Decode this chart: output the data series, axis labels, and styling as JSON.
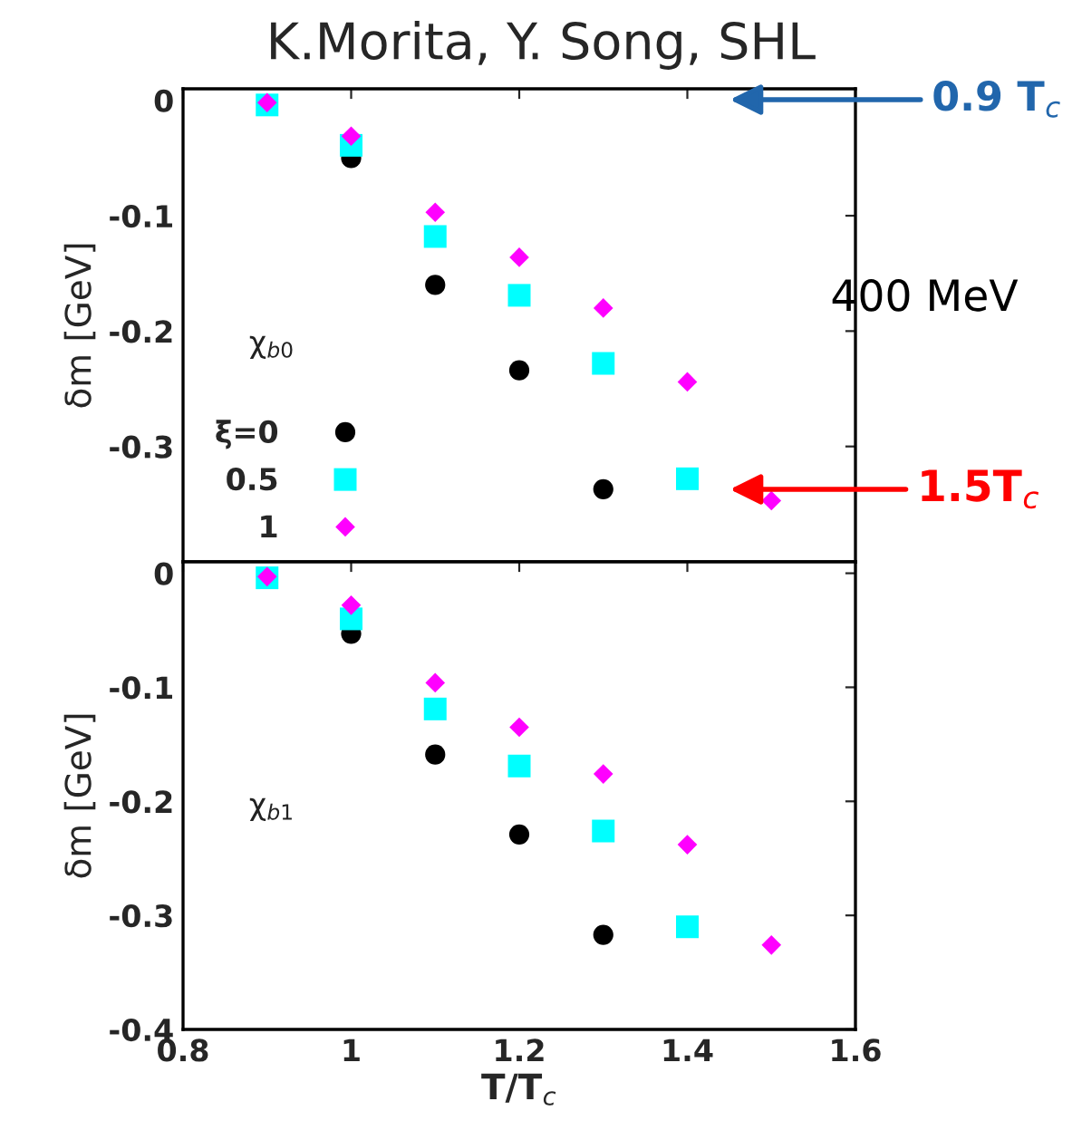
{
  "chart_data": [
    {
      "type": "scatter",
      "title": "K.Morita, Y. Song, SHL",
      "ylabel": "δm [GeV]",
      "xlim": [
        0.8,
        1.6
      ],
      "xticks": [
        0.8,
        1,
        1.2,
        1.4,
        1.6
      ],
      "ylim": [
        -0.4,
        0.01
      ],
      "yticks": [
        0,
        -0.1,
        -0.2,
        -0.3,
        {
          "value": -0.4,
          "label": null
        }
      ],
      "tick_labels": "y",
      "legend": "bottom left",
      "grid": false,
      "annotations": [
        "χ$_{b0}$",
        "400 MeV",
        "0.9 T$_{c}$",
        "1.5T$_{c}$"
      ],
      "series": [
        {
          "name": "ξ=0",
          "color": "#000000",
          "marker": "circle",
          "x": [
            1.0,
            1.1,
            1.2,
            1.3
          ],
          "values": [
            -0.05,
            -0.16,
            -0.234,
            -0.337
          ]
        },
        {
          "name": "0.5",
          "color": "#00ffff",
          "marker": "square",
          "x": [
            0.9,
            1.0,
            1.1,
            1.2,
            1.3,
            1.4
          ],
          "values": [
            -0.004,
            -0.039,
            -0.118,
            -0.169,
            -0.228,
            -0.328
          ]
        },
        {
          "name": "1",
          "color": "#ff00ff",
          "marker": "diamond",
          "x": [
            0.9,
            1.0,
            1.1,
            1.2,
            1.3,
            1.4,
            1.5
          ],
          "values": [
            -0.002,
            -0.031,
            -0.097,
            -0.136,
            -0.18,
            -0.244,
            -0.347
          ]
        }
      ]
    },
    {
      "type": "scatter",
      "xlabel": "T/T$_{c}$",
      "ylabel": "δm [GeV]",
      "xlim": [
        0.8,
        1.6
      ],
      "xticks": [
        0.8,
        1,
        1.2,
        1.4,
        1.6
      ],
      "ylim": [
        -0.4,
        0.01
      ],
      "yticks": [
        0,
        -0.1,
        -0.2,
        -0.3,
        -0.4
      ],
      "grid": false,
      "annotations": [
        "χ$_{b1}$"
      ],
      "series": [
        {
          "color": "#000000",
          "marker": "circle",
          "x": [
            1.0,
            1.1,
            1.2,
            1.3
          ],
          "values": [
            -0.053,
            -0.159,
            -0.229,
            -0.317
          ]
        },
        {
          "color": "#00ffff",
          "marker": "square",
          "x": [
            0.9,
            1.0,
            1.1,
            1.2,
            1.3,
            1.4
          ],
          "values": [
            -0.004,
            -0.04,
            -0.119,
            -0.169,
            -0.226,
            -0.31
          ]
        },
        {
          "color": "#ff00ff",
          "marker": "diamond",
          "x": [
            0.9,
            1.0,
            1.1,
            1.2,
            1.3,
            1.4,
            1.5
          ],
          "values": [
            -0.003,
            -0.028,
            -0.096,
            -0.135,
            -0.176,
            -0.238,
            -0.326
          ]
        }
      ]
    }
  ]
}
